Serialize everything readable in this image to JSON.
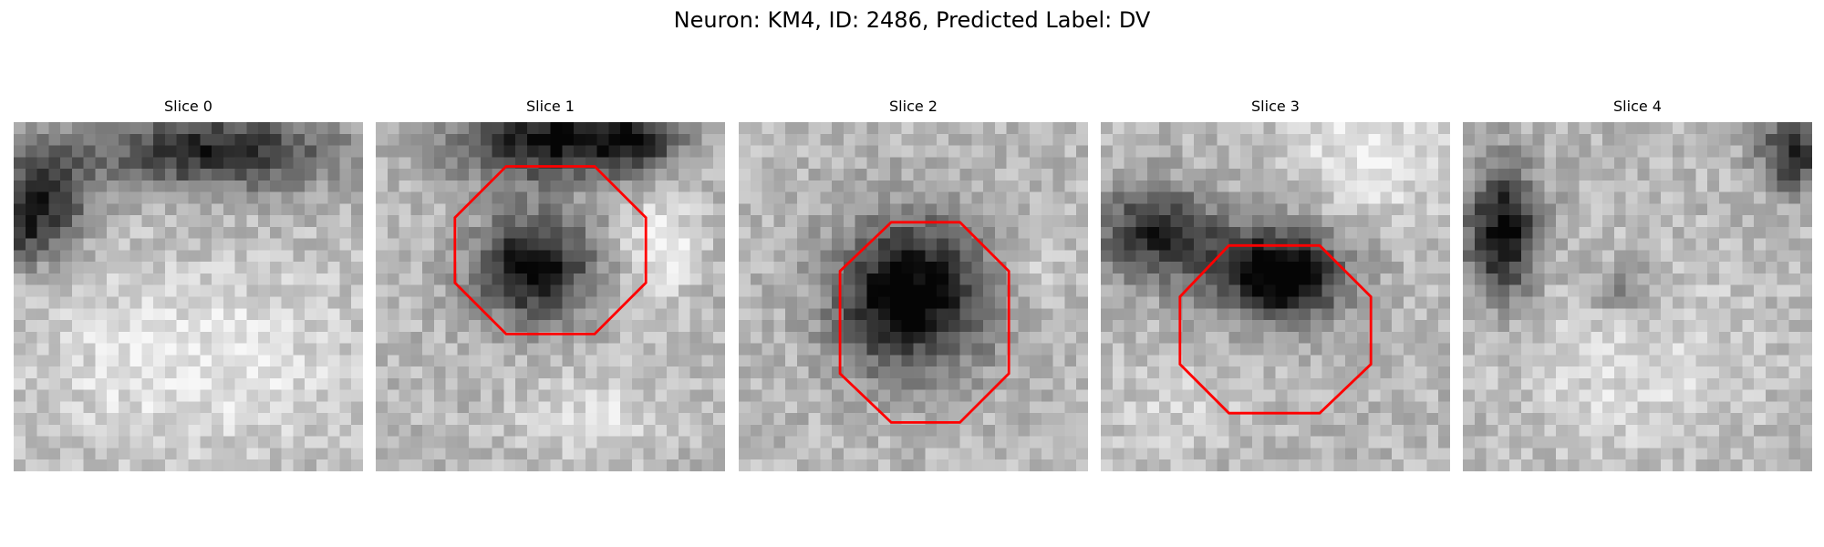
{
  "figure": {
    "title": "Neuron: KM4, ID: 2486, Predicted Label: DV"
  },
  "panels": [
    {
      "title": "Slice 0",
      "has_roi": false
    },
    {
      "title": "Slice 1",
      "has_roi": true
    },
    {
      "title": "Slice 2",
      "has_roi": true
    },
    {
      "title": "Slice 3",
      "has_roi": true
    },
    {
      "title": "Slice 4",
      "has_roi": false
    }
  ],
  "colors": {
    "background": "#ffffff",
    "roi_outline": "#ff0000",
    "text": "#000000"
  }
}
